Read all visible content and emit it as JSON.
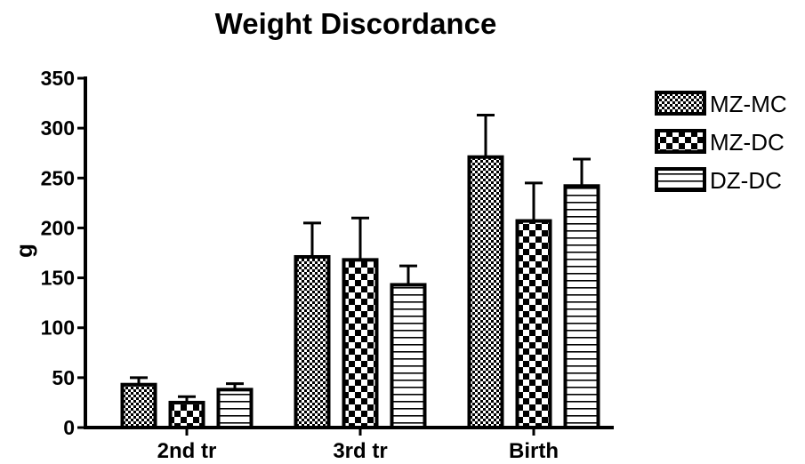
{
  "chart_data": {
    "type": "bar",
    "title": "Weight Discordance",
    "xlabel": "",
    "ylabel": "g",
    "ylim": [
      0,
      350
    ],
    "yticks": [
      0,
      50,
      100,
      150,
      200,
      250,
      300,
      350
    ],
    "categories": [
      "2nd tr",
      "3rd tr",
      "Birth"
    ],
    "series": [
      {
        "name": "MZ-MC",
        "values": [
          43,
          171,
          271
        ],
        "errors": [
          7,
          34,
          42
        ],
        "pattern": "fine-checker"
      },
      {
        "name": "MZ-DC",
        "values": [
          25,
          168,
          207
        ],
        "errors": [
          6,
          42,
          38
        ],
        "pattern": "checker"
      },
      {
        "name": "DZ-DC",
        "values": [
          38,
          143,
          242
        ],
        "errors": [
          6,
          19,
          27
        ],
        "pattern": "horizontal-lines"
      }
    ],
    "legend_position": "right",
    "grid": false,
    "error_bars": "upper"
  }
}
